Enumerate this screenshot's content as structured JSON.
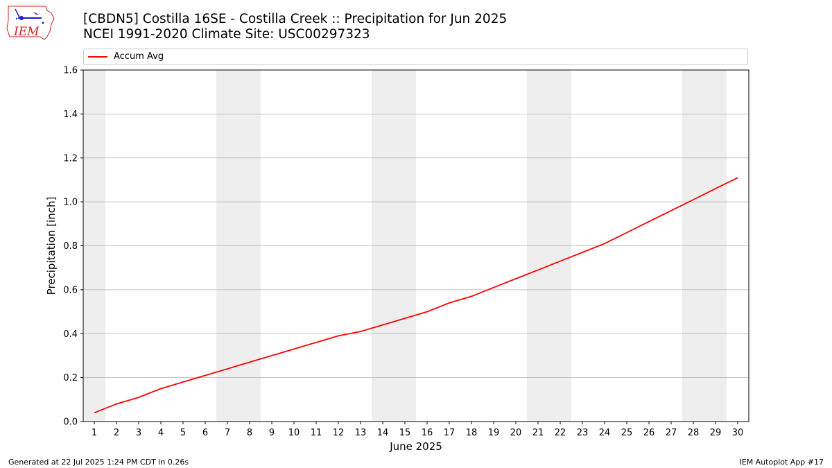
{
  "title_line1": "[CBDN5] Costilla 16SE - Costilla Creek :: Precipitation for Jun 2025",
  "title_line2": "NCEI 1991-2020 Climate Site: USC00297323",
  "logo_text": "IEM",
  "footer_left": "Generated at 22 Jul 2025 1:24 PM CDT in 0.26s",
  "footer_right": "IEM Autoplot App #17",
  "colors": {
    "series": "#ff0000",
    "weekend": "#eeeeee",
    "grid": "#b0b0b0",
    "logo": "#cc2222",
    "logo_icon": "#1a1acc"
  },
  "chart_data": {
    "type": "line",
    "xlabel": "June 2025",
    "ylabel": "Precipitation [inch]",
    "xlim": [
      0.5,
      30.5
    ],
    "ylim": [
      0,
      1.6
    ],
    "x": [
      1,
      2,
      3,
      4,
      5,
      6,
      7,
      8,
      9,
      10,
      11,
      12,
      13,
      14,
      15,
      16,
      17,
      18,
      19,
      20,
      21,
      22,
      23,
      24,
      25,
      26,
      27,
      28,
      29,
      30
    ],
    "x_tick_labels": [
      "1",
      "2",
      "3",
      "4",
      "5",
      "6",
      "7",
      "8",
      "9",
      "10",
      "11",
      "12",
      "13",
      "14",
      "15",
      "16",
      "17",
      "18",
      "19",
      "20",
      "21",
      "22",
      "23",
      "24",
      "25",
      "26",
      "27",
      "28",
      "29",
      "30"
    ],
    "y_ticks": [
      0.0,
      0.2,
      0.4,
      0.6,
      0.8,
      1.0,
      1.2,
      1.4,
      1.6
    ],
    "y_tick_labels": [
      "0.0",
      "0.2",
      "0.4",
      "0.6",
      "0.8",
      "1.0",
      "1.2",
      "1.4",
      "1.6"
    ],
    "grid": "horizontal",
    "legend": "top",
    "weekend_spans": [
      [
        0.5,
        1.5
      ],
      [
        6.5,
        8.5
      ],
      [
        13.5,
        15.5
      ],
      [
        20.5,
        22.5
      ],
      [
        27.5,
        29.5
      ]
    ],
    "series": [
      {
        "name": "Accum Avg",
        "values": [
          0.04,
          0.08,
          0.11,
          0.15,
          0.18,
          0.21,
          0.24,
          0.27,
          0.3,
          0.33,
          0.36,
          0.39,
          0.41,
          0.44,
          0.47,
          0.5,
          0.54,
          0.57,
          0.61,
          0.65,
          0.69,
          0.73,
          0.77,
          0.81,
          0.86,
          0.91,
          0.96,
          1.01,
          1.06,
          1.11
        ]
      }
    ]
  }
}
